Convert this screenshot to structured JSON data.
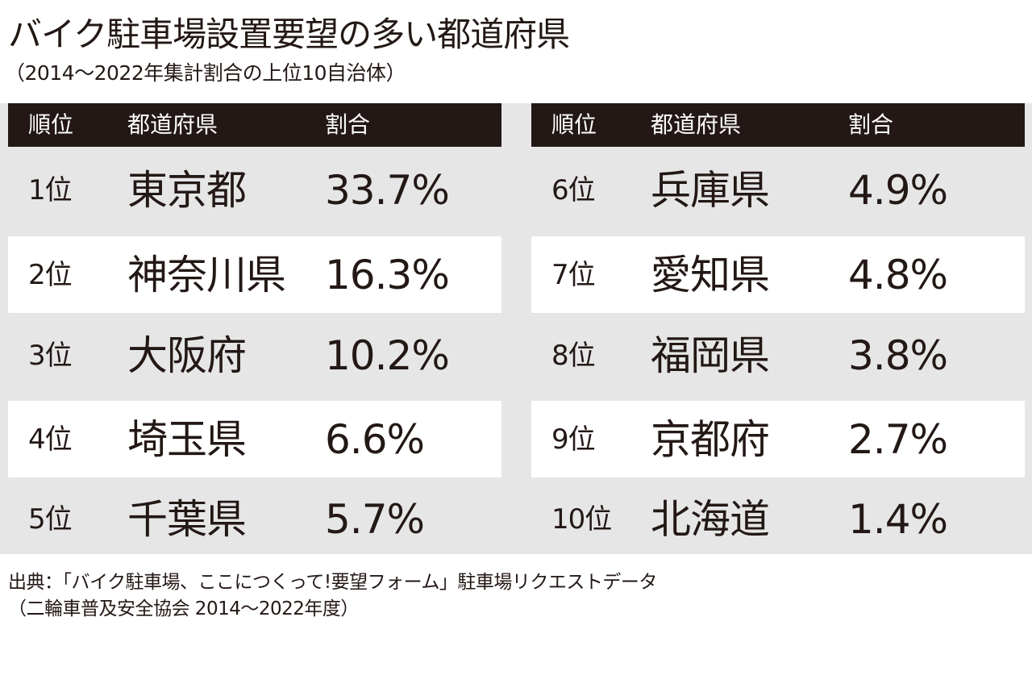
{
  "title": "バイク駐車場設置要望の多い都道府県",
  "subtitle": "（2014～2022年集計割合の上位10自治体）",
  "chart_data": {
    "type": "table",
    "columns": [
      "順位",
      "都道府県",
      "割合"
    ],
    "rows": [
      {
        "rank": "1位",
        "prefecture": "東京都",
        "share": "33.7%"
      },
      {
        "rank": "2位",
        "prefecture": "神奈川県",
        "share": "16.3%"
      },
      {
        "rank": "3位",
        "prefecture": "大阪府",
        "share": "10.2%"
      },
      {
        "rank": "4位",
        "prefecture": "埼玉県",
        "share": "6.6%"
      },
      {
        "rank": "5位",
        "prefecture": "千葉県",
        "share": "5.7%"
      },
      {
        "rank": "6位",
        "prefecture": "兵庫県",
        "share": "4.9%"
      },
      {
        "rank": "7位",
        "prefecture": "愛知県",
        "share": "4.8%"
      },
      {
        "rank": "8位",
        "prefecture": "福岡県",
        "share": "3.8%"
      },
      {
        "rank": "9位",
        "prefecture": "京都府",
        "share": "2.7%"
      },
      {
        "rank": "10位",
        "prefecture": "北海道",
        "share": "1.4%"
      }
    ]
  },
  "source": {
    "line1": "出典：「バイク駐車場、ここにつくって!要望フォーム」駐車場リクエストデータ",
    "line2": "（二輪車普及安全協会 2014～2022年度）"
  },
  "colors": {
    "header_bg": "#231815",
    "header_text": "#ffffff",
    "row_gray": "#e6e6e7",
    "row_white": "#ffffff",
    "text": "#231815"
  }
}
